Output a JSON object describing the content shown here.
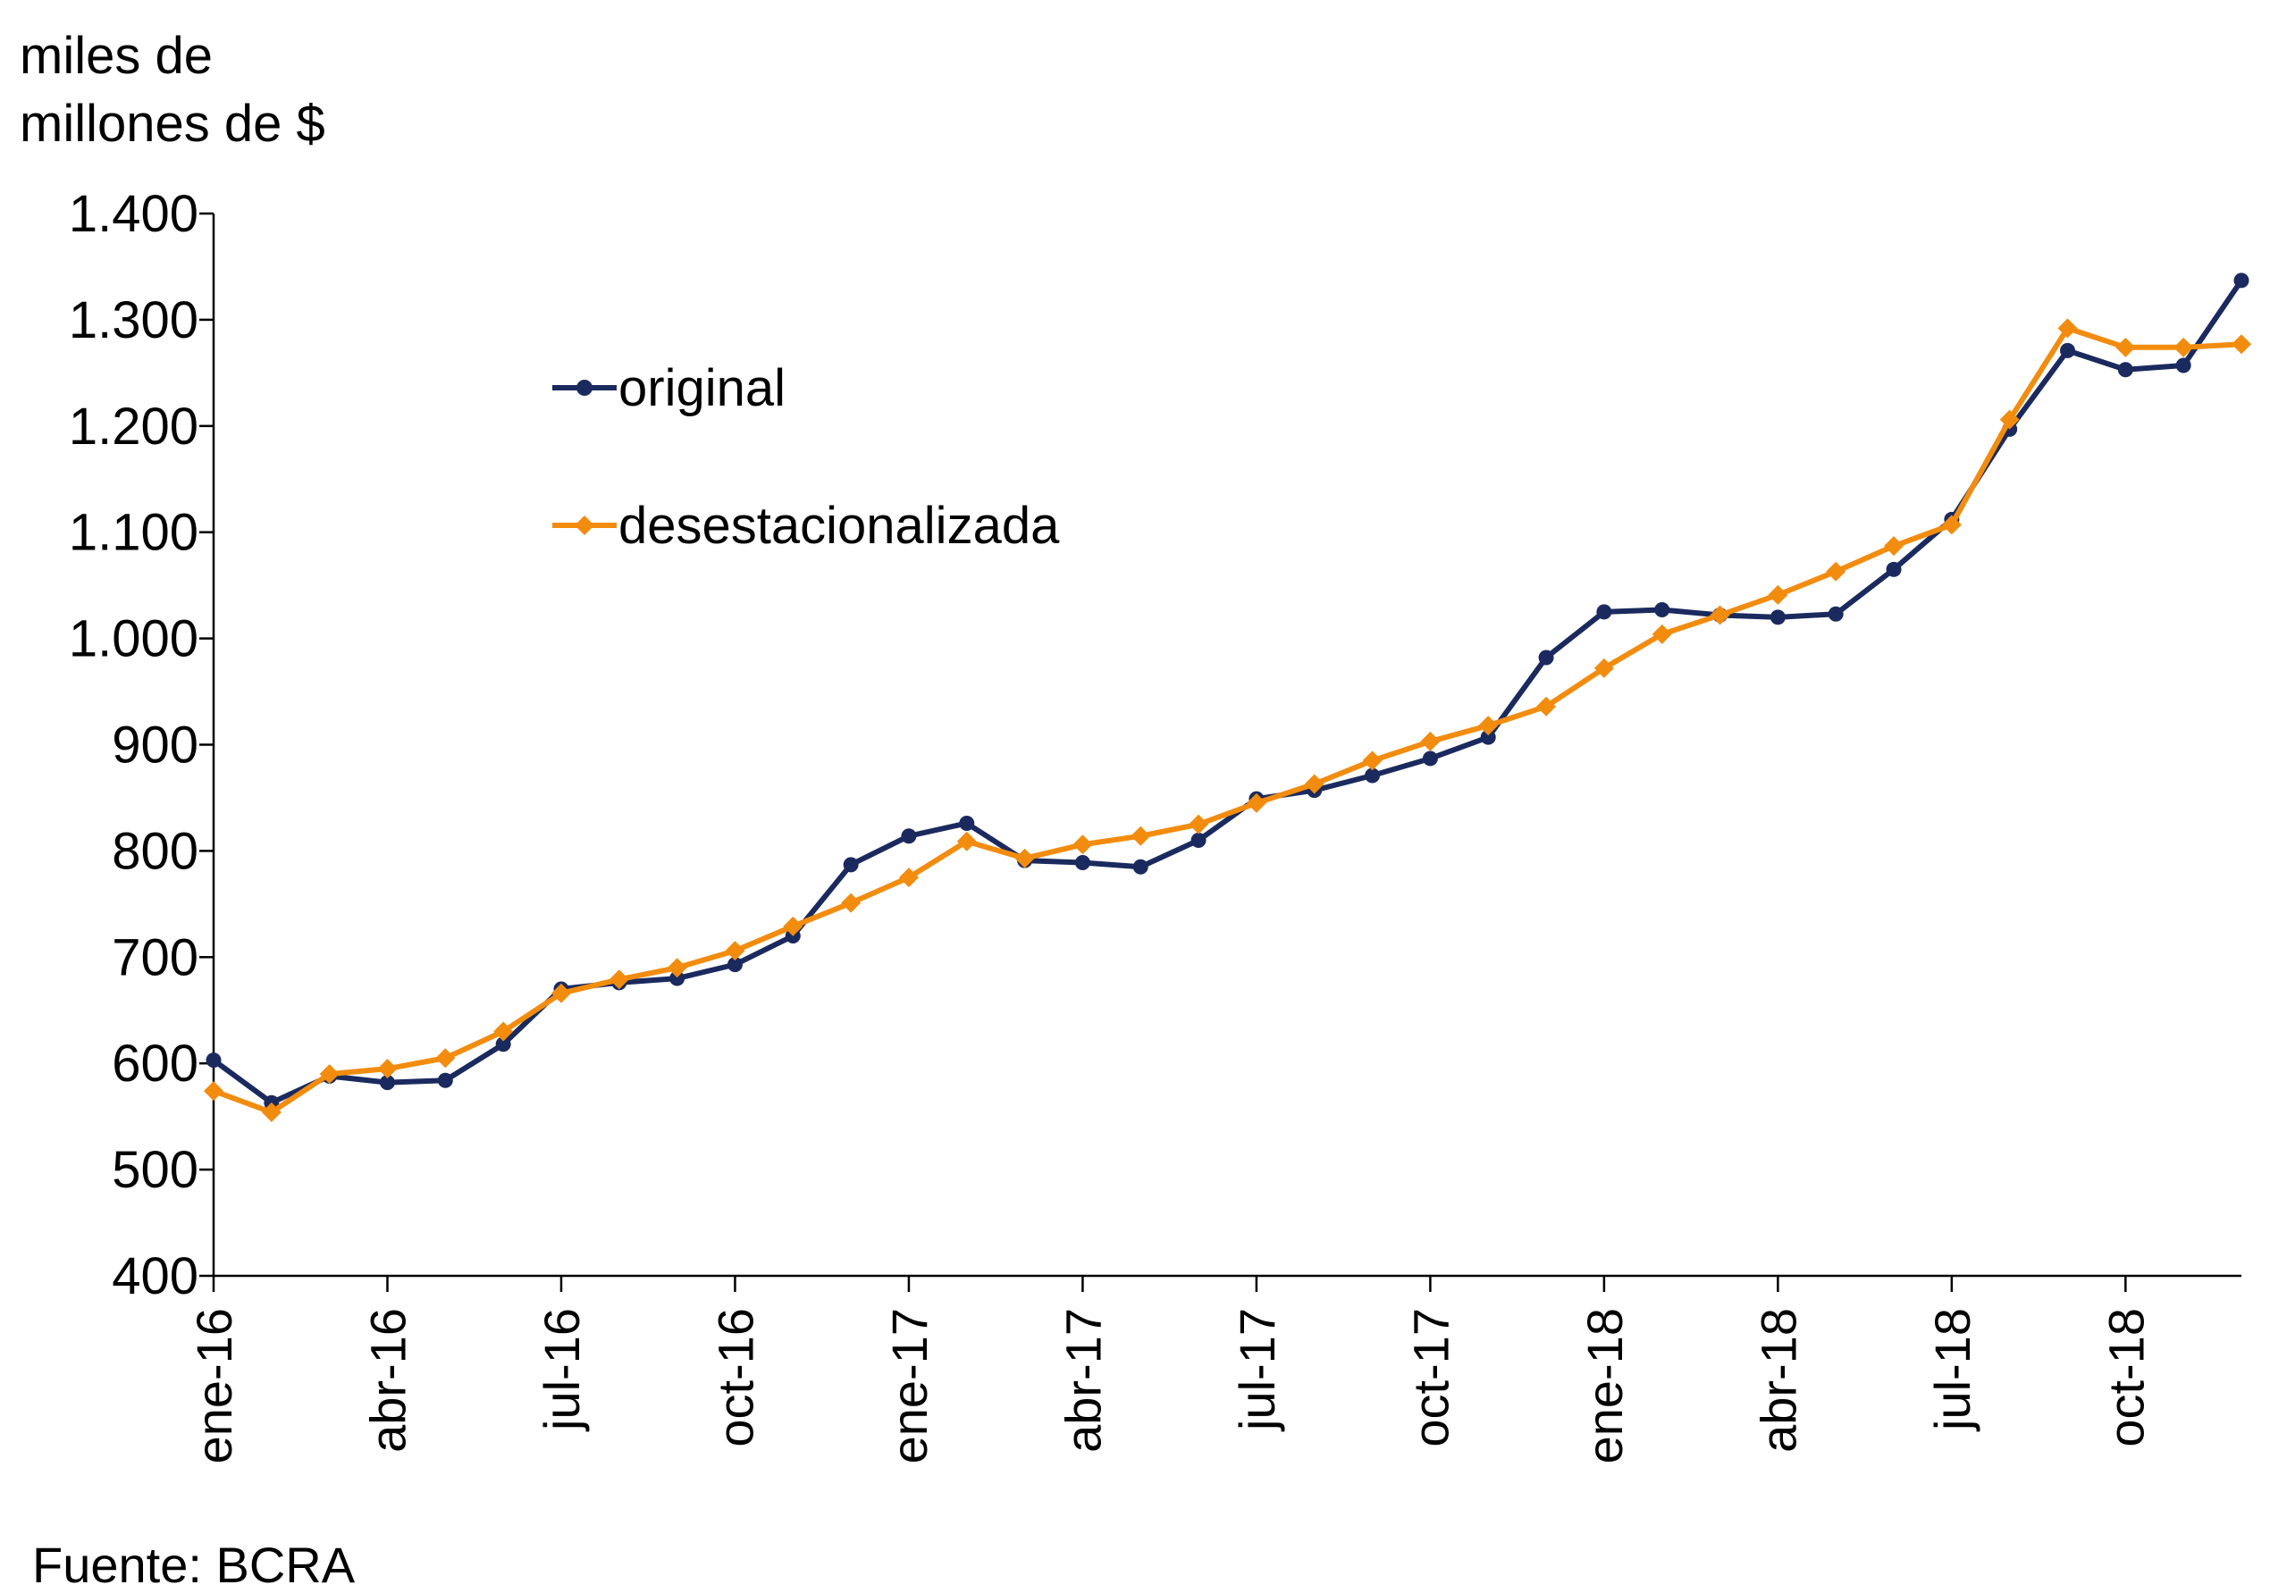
{
  "chart_data": {
    "type": "line",
    "unit_label_line1": "miles de",
    "unit_label_line2": "millones de $",
    "source": "Fuente: BCRA",
    "ylim": [
      400,
      1400
    ],
    "yticks": [
      "400",
      "500",
      "600",
      "700",
      "800",
      "900",
      "1.000",
      "1.100",
      "1.200",
      "1.300",
      "1.400"
    ],
    "ytick_values": [
      400,
      500,
      600,
      700,
      800,
      900,
      1000,
      1100,
      1200,
      1300,
      1400
    ],
    "grid": false,
    "legend_position": "upper-left-inside",
    "x_tick_labels": [
      {
        "index": 0,
        "label": "ene-16"
      },
      {
        "index": 3,
        "label": "abr-16"
      },
      {
        "index": 6,
        "label": "jul-16"
      },
      {
        "index": 9,
        "label": "oct-16"
      },
      {
        "index": 12,
        "label": "ene-17"
      },
      {
        "index": 15,
        "label": "abr-17"
      },
      {
        "index": 18,
        "label": "jul-17"
      },
      {
        "index": 21,
        "label": "oct-17"
      },
      {
        "index": 24,
        "label": "ene-18"
      },
      {
        "index": 27,
        "label": "abr-18"
      },
      {
        "index": 30,
        "label": "jul-18"
      },
      {
        "index": 33,
        "label": "oct-18"
      }
    ],
    "n_points": 36,
    "series": [
      {
        "name": "original",
        "color": "#1b2a5e",
        "marker": "circle",
        "values": [
          603,
          563,
          588,
          582,
          584,
          618,
          670,
          676,
          680,
          693,
          720,
          787,
          814,
          826,
          791,
          789,
          785,
          810,
          849,
          857,
          871,
          887,
          907,
          982,
          1025,
          1027,
          1022,
          1020,
          1023,
          1065,
          1112,
          1197,
          1271,
          1253,
          1257,
          1337
        ]
      },
      {
        "name": "desestacionalizada",
        "color": "#f28c0f",
        "marker": "diamond",
        "values": [
          574,
          554,
          590,
          595,
          605,
          630,
          666,
          679,
          690,
          706,
          729,
          751,
          775,
          809,
          793,
          806,
          814,
          825,
          845,
          863,
          885,
          903,
          918,
          936,
          972,
          1004,
          1022,
          1041,
          1063,
          1087,
          1107,
          1206,
          1292,
          1274,
          1274,
          1277
        ]
      }
    ]
  }
}
